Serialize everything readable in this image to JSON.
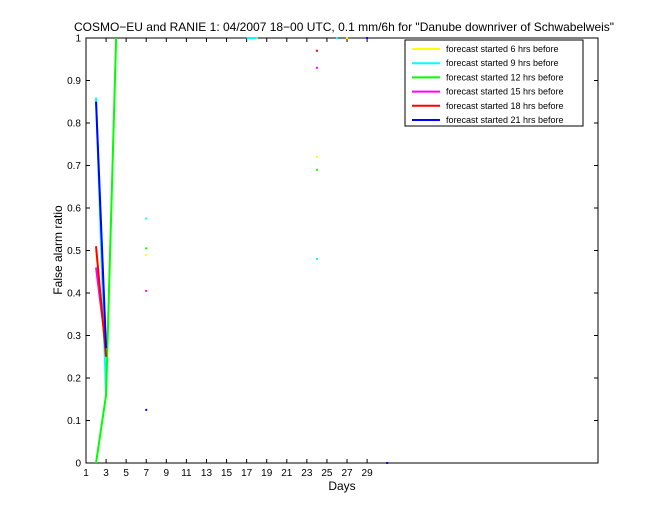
{
  "chart_data": {
    "type": "line",
    "title": "COSMO−EU and RANIE 1: 04/2007 18−00 UTC, 0.1 mm/6h for \"Danube downriver of Schwabelweis\"",
    "xlabel": "Days",
    "ylabel": "False alarm ratio",
    "xlim": [
      1,
      52
    ],
    "ylim": [
      0,
      1
    ],
    "xticks": [
      1,
      3,
      5,
      7,
      9,
      11,
      13,
      15,
      17,
      19,
      21,
      23,
      25,
      27,
      29
    ],
    "yticks": [
      0,
      0.1,
      0.2,
      0.3,
      0.4,
      0.5,
      0.6,
      0.7,
      0.8,
      0.9,
      1
    ],
    "ytick_labels": [
      "0",
      "0.1",
      "0.2",
      "0.3",
      "0.4",
      "0.5",
      "0.6",
      "0.7",
      "0.8",
      "0.9",
      "1"
    ],
    "grid": false,
    "legend_position": "top-right",
    "series": [
      {
        "name": "forecast started 6 hrs before",
        "color": "#ffff00",
        "x": [
          2,
          3,
          7,
          18,
          24,
          27,
          29
        ],
        "y": [
          0.5,
          0.27,
          0.49,
          1.0,
          0.72,
          1.0,
          1.0
        ]
      },
      {
        "name": "forecast started 9 hrs before",
        "color": "#00ffff",
        "x": [
          2,
          3,
          7,
          17,
          18,
          24,
          26
        ],
        "y": [
          0.86,
          0.16,
          0.575,
          1.0,
          1.0,
          0.48,
          1.0
        ]
      },
      {
        "name": "forecast started 12 hrs before",
        "color": "#00ff00",
        "x": [
          2,
          3,
          4,
          7,
          24
        ],
        "y": [
          0.0,
          0.16,
          1.0,
          0.505,
          0.69
        ]
      },
      {
        "name": "forecast started 15 hrs before",
        "color": "#ff00ff",
        "x": [
          2,
          3,
          7,
          24
        ],
        "y": [
          0.46,
          0.27,
          0.405,
          0.93
        ]
      },
      {
        "name": "forecast started 18 hrs before",
        "color": "#ff0000",
        "x": [
          2,
          3,
          24
        ],
        "y": [
          0.51,
          0.25,
          0.97
        ]
      },
      {
        "name": "forecast started 21 hrs before",
        "color": "#0000ff",
        "x": [
          2,
          3,
          7,
          29,
          31
        ],
        "y": [
          0.85,
          0.27,
          0.125,
          1.0,
          0.0
        ]
      }
    ]
  }
}
